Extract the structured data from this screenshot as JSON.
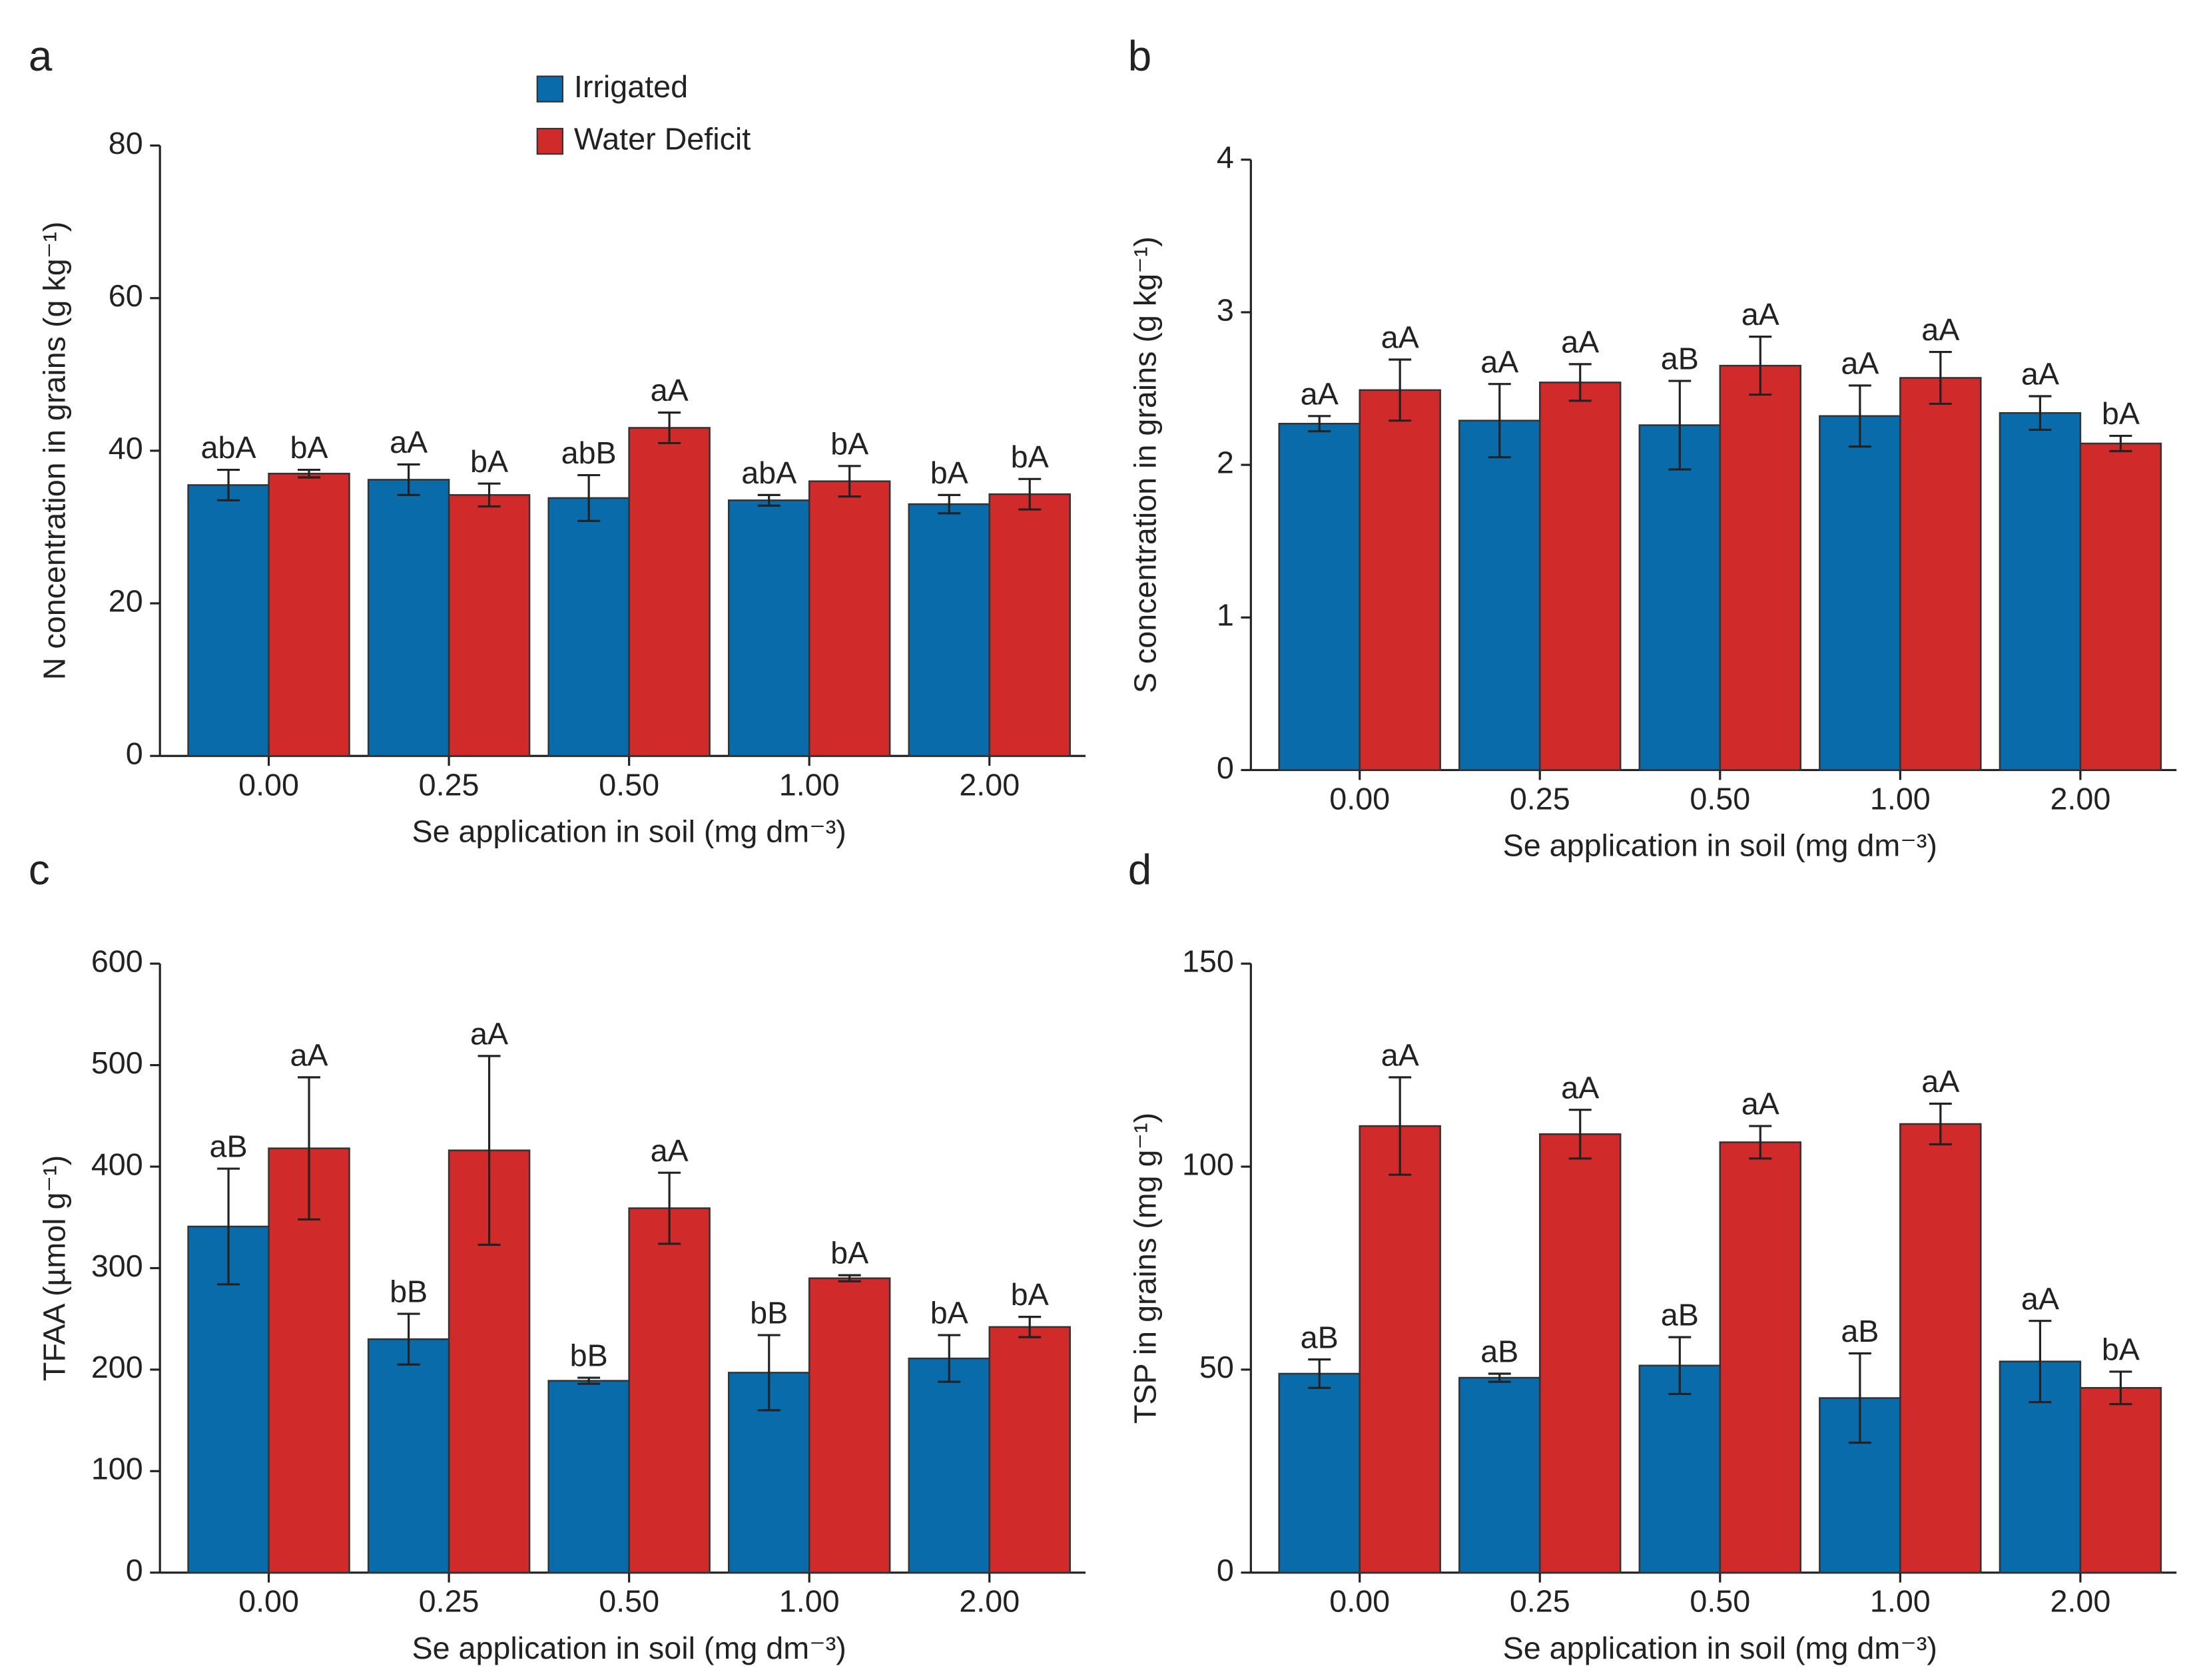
{
  "chart_data": [
    {
      "type": "bar",
      "panel": "a",
      "ylabel": "N concentration in grains (g kg⁻¹)",
      "xlabel": "Se application in soil (mg dm⁻³)",
      "categories": [
        "0.00",
        "0.25",
        "0.50",
        "1.00",
        "2.00"
      ],
      "series": [
        {
          "name": "Irrigated",
          "color": "#0a6bab",
          "values": [
            35.5,
            36.2,
            33.8,
            33.5,
            33.0
          ],
          "errors": [
            2.0,
            2.0,
            3.0,
            0.7,
            1.2
          ],
          "labels": [
            "abA",
            "aA",
            "abB",
            "abA",
            "bA"
          ]
        },
        {
          "name": "Water Deficit",
          "color": "#d12a2a",
          "values": [
            37.0,
            34.2,
            43.0,
            36.0,
            34.3
          ],
          "errors": [
            0.5,
            1.5,
            2.0,
            2.0,
            2.0
          ],
          "labels": [
            "bA",
            "bA",
            "aA",
            "bA",
            "bA"
          ]
        }
      ],
      "ylim": [
        0,
        80
      ],
      "yticks": [
        0,
        20,
        40,
        60,
        80
      ]
    },
    {
      "type": "bar",
      "panel": "b",
      "ylabel": "S concentration in grains (g kg⁻¹)",
      "xlabel": "Se application in soil (mg dm⁻³)",
      "categories": [
        "0.00",
        "0.25",
        "0.50",
        "1.00",
        "2.00"
      ],
      "series": [
        {
          "color": "#0a6bab",
          "values": [
            2.27,
            2.29,
            2.26,
            2.32,
            2.34
          ],
          "errors": [
            0.05,
            0.24,
            0.29,
            0.2,
            0.11
          ],
          "labels": [
            "aA",
            "aA",
            "aB",
            "aA",
            "aA"
          ]
        },
        {
          "color": "#d12a2a",
          "values": [
            2.49,
            2.54,
            2.65,
            2.57,
            2.14
          ],
          "errors": [
            0.2,
            0.12,
            0.19,
            0.17,
            0.05
          ],
          "labels": [
            "aA",
            "aA",
            "aA",
            "aA",
            "bA"
          ]
        }
      ],
      "ylim": [
        0,
        4
      ],
      "yticks": [
        0,
        1,
        2,
        3,
        4
      ]
    },
    {
      "type": "bar",
      "panel": "c",
      "ylabel": "TFAA (µmol g⁻¹)",
      "xlabel": "Se application in soil (mg dm⁻³)",
      "categories": [
        "0.00",
        "0.25",
        "0.50",
        "1.00",
        "2.00"
      ],
      "series": [
        {
          "color": "#0a6bab",
          "values": [
            341,
            230,
            189,
            197,
            211
          ],
          "errors": [
            57,
            25,
            3,
            37,
            23
          ],
          "labels": [
            "aB",
            "bB",
            "bB",
            "bB",
            "bA"
          ]
        },
        {
          "color": "#d12a2a",
          "values": [
            418,
            416,
            359,
            290,
            242
          ],
          "errors": [
            70,
            93,
            35,
            3,
            10
          ],
          "labels": [
            "aA",
            "aA",
            "aA",
            "bA",
            "bA"
          ]
        }
      ],
      "ylim": [
        0,
        600
      ],
      "yticks": [
        0,
        100,
        200,
        300,
        400,
        500,
        600
      ]
    },
    {
      "type": "bar",
      "panel": "d",
      "ylabel": "TSP in grains (mg g⁻¹)",
      "xlabel": "Se application in soil (mg dm⁻³)",
      "categories": [
        "0.00",
        "0.25",
        "0.50",
        "1.00",
        "2.00"
      ],
      "series": [
        {
          "color": "#0a6bab",
          "values": [
            49,
            48,
            51,
            43,
            52
          ],
          "errors": [
            3.5,
            1,
            7,
            11,
            10
          ],
          "labels": [
            "aB",
            "aB",
            "aB",
            "aB",
            "aA"
          ]
        },
        {
          "color": "#d12a2a",
          "values": [
            110,
            108,
            106,
            110.5,
            45.5
          ],
          "errors": [
            12,
            6,
            4,
            5,
            4
          ],
          "labels": [
            "aA",
            "aA",
            "aA",
            "aA",
            "bA"
          ]
        }
      ],
      "ylim": [
        0,
        150
      ],
      "yticks": [
        0,
        50,
        100,
        150
      ]
    }
  ]
}
